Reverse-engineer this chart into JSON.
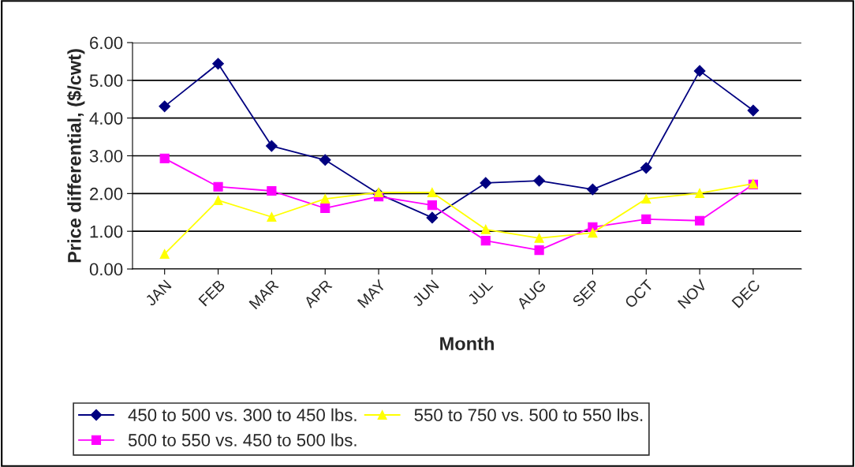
{
  "chart_data": {
    "type": "line",
    "xlabel": "Month",
    "ylabel": "Price differential, ($/cwt)",
    "categories": [
      "JAN",
      "FEB",
      "MAR",
      "APR",
      "MAY",
      "JUN",
      "JUL",
      "AUG",
      "SEP",
      "OCT",
      "NOV",
      "DEC"
    ],
    "series": [
      {
        "name": "450 to 500 vs. 300 to 450 lbs.",
        "color": "#000080",
        "marker": "diamond",
        "values": [
          4.31,
          5.44,
          3.26,
          2.89,
          1.99,
          1.36,
          2.28,
          2.34,
          2.11,
          2.68,
          5.25,
          4.2
        ]
      },
      {
        "name": "500 to 550 vs. 450 to 500 lbs.",
        "color": "#ff00ff",
        "marker": "square",
        "values": [
          2.93,
          2.18,
          2.07,
          1.61,
          1.92,
          1.69,
          0.75,
          0.5,
          1.11,
          1.32,
          1.28,
          2.24
        ]
      },
      {
        "name": "550 to 750 vs. 500 to 550 lbs.",
        "color": "#ffff00",
        "marker": "triangle",
        "values": [
          0.4,
          1.82,
          1.38,
          1.86,
          2.03,
          2.03,
          1.05,
          0.82,
          0.96,
          1.86,
          2.01,
          2.26
        ]
      }
    ],
    "ylim": [
      0,
      6
    ],
    "yticks": [
      {
        "value": 0,
        "label": "0.00"
      },
      {
        "value": 1,
        "label": "1.00"
      },
      {
        "value": 2,
        "label": "2.00"
      },
      {
        "value": 3,
        "label": "3.00"
      },
      {
        "value": 4,
        "label": "4.00"
      },
      {
        "value": 5,
        "label": "5.00"
      },
      {
        "value": 6,
        "label": "6.00"
      }
    ],
    "grid": "y",
    "legend": "bottom"
  }
}
